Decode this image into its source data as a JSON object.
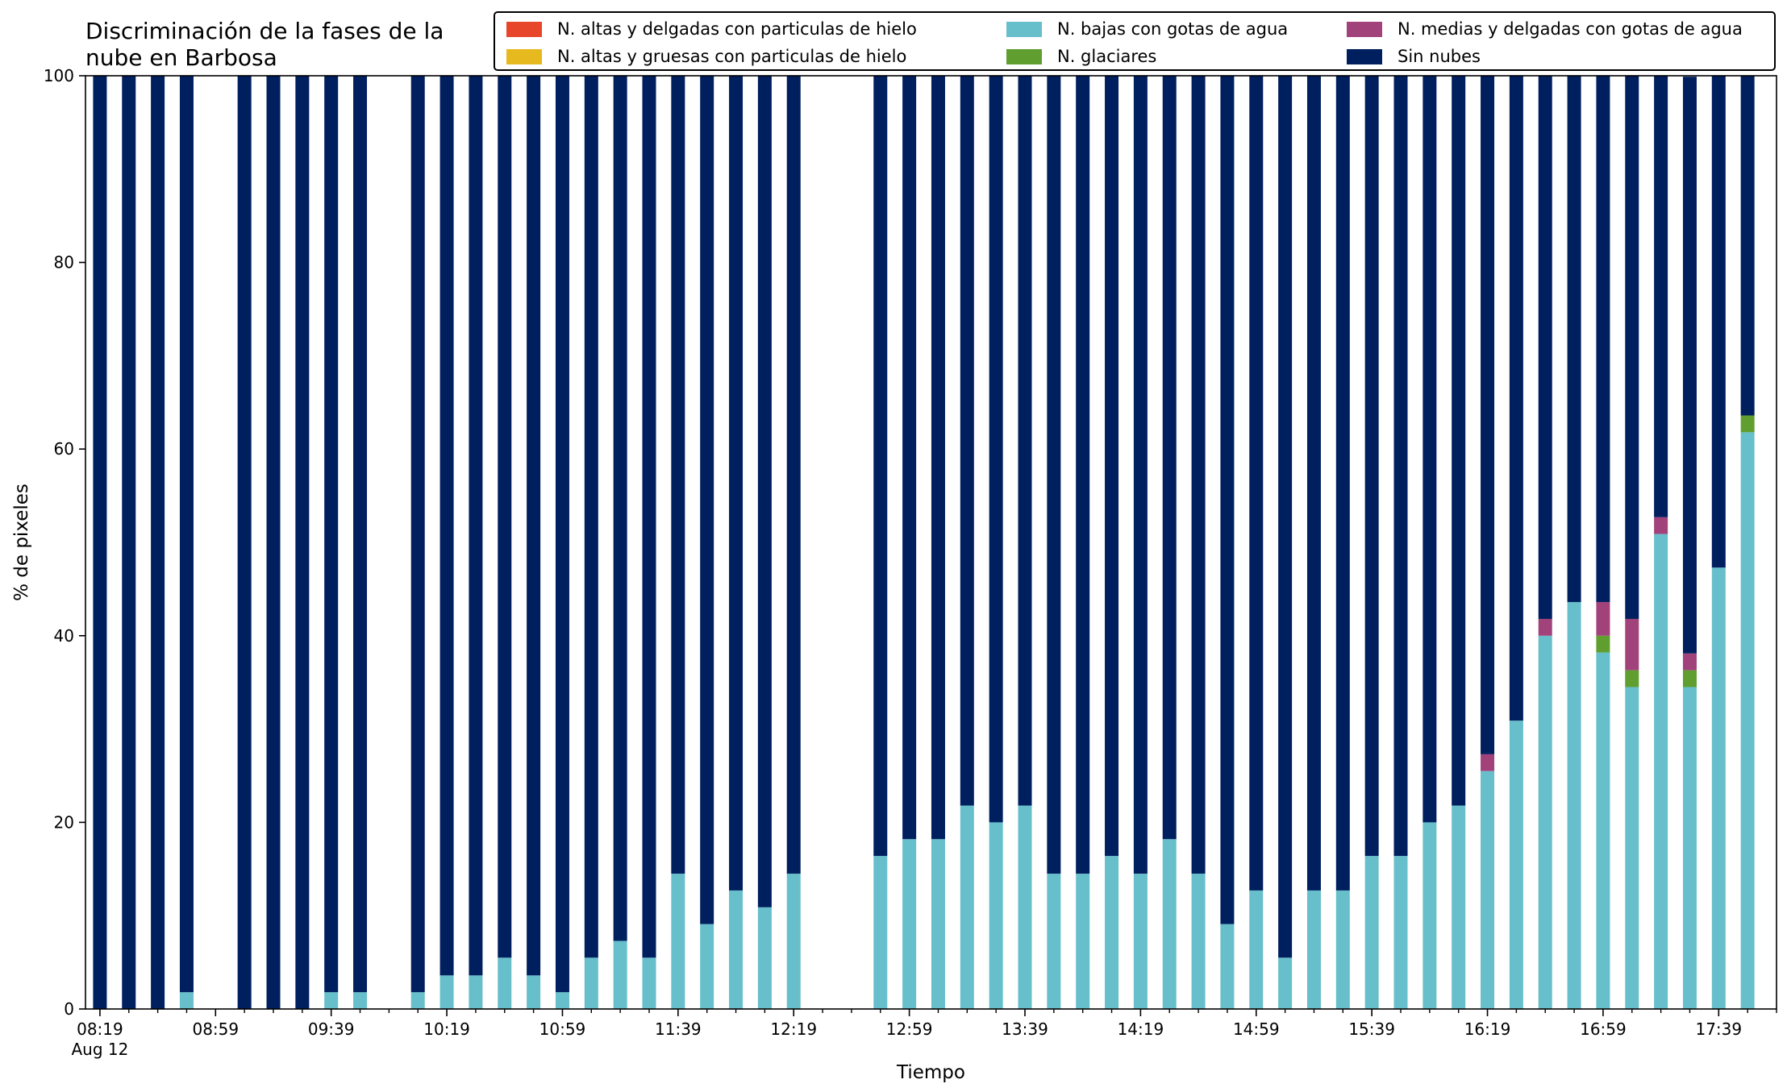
{
  "chart_data": {
    "type": "bar",
    "stacked": true,
    "title": "Discriminación de la fases de la\nnube en Barbosa",
    "xlabel": "Tiempo",
    "ylabel": "% de pixeles",
    "ylim": [
      0,
      100
    ],
    "yticks": [
      0,
      20,
      40,
      60,
      80,
      100
    ],
    "xlim": [
      "08:14",
      "17:59"
    ],
    "x_date_label": "Aug 12",
    "major_xticks": [
      "08:19",
      "08:59",
      "09:39",
      "10:19",
      "10:59",
      "11:39",
      "12:19",
      "12:59",
      "13:39",
      "14:19",
      "14:59",
      "15:39",
      "16:19",
      "16:59",
      "17:39"
    ],
    "minor_xticks": [
      "08:29",
      "08:39",
      "08:49",
      "09:09",
      "09:19",
      "09:29",
      "09:49",
      "09:59",
      "10:09",
      "10:29",
      "10:39",
      "10:49",
      "11:09",
      "11:19",
      "11:29",
      "11:49",
      "11:59",
      "12:09",
      "12:29",
      "12:39",
      "12:49",
      "13:09",
      "13:19",
      "13:29",
      "13:49",
      "13:59",
      "14:09",
      "14:29",
      "14:39",
      "14:49",
      "15:09",
      "15:19",
      "15:29",
      "15:49",
      "15:59",
      "16:09",
      "16:29",
      "16:39",
      "16:49",
      "17:09",
      "17:19",
      "17:29",
      "17:49",
      "17:59"
    ],
    "grid": false,
    "legend_position": "top-right",
    "legend_columns": 3,
    "x": [
      "08:19",
      "08:29",
      "08:39",
      "08:49",
      "09:09",
      "09:19",
      "09:29",
      "09:39",
      "09:49",
      "10:09",
      "10:19",
      "10:29",
      "10:39",
      "10:49",
      "10:59",
      "11:09",
      "11:19",
      "11:29",
      "11:39",
      "11:49",
      "11:59",
      "12:09",
      "12:19",
      "12:49",
      "12:59",
      "13:09",
      "13:19",
      "13:29",
      "13:39",
      "13:49",
      "13:59",
      "14:09",
      "14:19",
      "14:29",
      "14:39",
      "14:49",
      "14:59",
      "15:09",
      "15:19",
      "15:29",
      "15:39",
      "15:49",
      "15:59",
      "16:09",
      "16:19",
      "16:29",
      "16:39",
      "16:49",
      "16:59",
      "17:09",
      "17:19",
      "17:29",
      "17:39",
      "17:49"
    ],
    "series": [
      {
        "name": "N. altas y delgadas con particulas de hielo",
        "color": "#e8462a",
        "values": [
          0,
          0,
          0,
          0,
          0,
          0,
          0,
          0,
          0,
          0,
          0,
          0,
          0,
          0,
          0,
          0,
          0,
          0,
          0,
          0,
          0,
          0,
          0,
          0,
          0,
          0,
          0,
          0,
          0,
          0,
          0,
          0,
          0,
          0,
          0,
          0,
          0,
          0,
          0,
          0,
          0,
          0,
          0,
          0,
          0,
          0,
          0,
          0,
          0,
          0,
          0,
          0,
          0,
          0
        ]
      },
      {
        "name": "N. altas y gruesas con particulas de hielo",
        "color": "#e6b91e",
        "values": [
          0,
          0,
          0,
          0,
          0,
          0,
          0,
          0,
          0,
          0,
          0,
          0,
          0,
          0,
          0,
          0,
          0,
          0,
          0,
          0,
          0,
          0,
          0,
          0,
          0,
          0,
          0,
          0,
          0,
          0,
          0,
          0,
          0,
          0,
          0,
          0,
          0,
          0,
          0,
          0,
          0,
          0,
          0,
          0,
          0,
          0,
          0,
          0,
          0,
          0,
          0,
          0,
          0,
          0
        ]
      },
      {
        "name": "N. bajas con gotas de agua",
        "color": "#67bfcb",
        "values": [
          0,
          0,
          0,
          1.8,
          0,
          0,
          0,
          1.8,
          1.8,
          1.8,
          3.6,
          3.6,
          5.5,
          3.6,
          1.8,
          5.5,
          7.3,
          5.5,
          14.5,
          9.1,
          12.7,
          10.9,
          14.5,
          16.4,
          18.2,
          18.2,
          21.8,
          20.0,
          21.8,
          14.5,
          14.5,
          16.4,
          14.5,
          18.2,
          14.5,
          9.1,
          12.7,
          5.5,
          12.7,
          12.7,
          16.4,
          16.4,
          20.0,
          21.8,
          25.5,
          30.9,
          40.0,
          43.6,
          38.2,
          34.5,
          50.9,
          34.5,
          47.3,
          61.8
        ]
      },
      {
        "name": "N. glaciares",
        "color": "#5f9e2f",
        "values": [
          0,
          0,
          0,
          0,
          0,
          0,
          0,
          0,
          0,
          0,
          0,
          0,
          0,
          0,
          0,
          0,
          0,
          0,
          0,
          0,
          0,
          0,
          0,
          0,
          0,
          0,
          0,
          0,
          0,
          0,
          0,
          0,
          0,
          0,
          0,
          0,
          0,
          0,
          0,
          0,
          0,
          0,
          0,
          0,
          0,
          0,
          0,
          0,
          1.8,
          1.8,
          0,
          1.8,
          0,
          1.8
        ]
      },
      {
        "name": "N. medias y delgadas con gotas de agua",
        "color": "#a2427a",
        "values": [
          0,
          0,
          0,
          0,
          0,
          0,
          0,
          0,
          0,
          0,
          0,
          0,
          0,
          0,
          0,
          0,
          0,
          0,
          0,
          0,
          0,
          0,
          0,
          0,
          0,
          0,
          0,
          0,
          0,
          0,
          0,
          0,
          0,
          0,
          0,
          0,
          0,
          0,
          0,
          0,
          0,
          0,
          0,
          0,
          1.8,
          0,
          1.8,
          0,
          3.6,
          5.5,
          1.8,
          1.8,
          0,
          0
        ]
      },
      {
        "name": "Sin nubes",
        "color": "#001f5f",
        "values": [
          100,
          100,
          100,
          98.2,
          100,
          100,
          100,
          98.2,
          98.2,
          98.2,
          96.4,
          96.4,
          94.5,
          96.4,
          98.2,
          94.5,
          92.7,
          94.5,
          85.5,
          90.9,
          87.3,
          89.1,
          85.5,
          83.6,
          81.8,
          81.8,
          78.2,
          80.0,
          78.2,
          85.5,
          85.5,
          83.6,
          85.5,
          81.8,
          85.5,
          90.9,
          87.3,
          94.5,
          87.3,
          87.3,
          83.6,
          83.6,
          80.0,
          78.2,
          72.7,
          69.1,
          58.2,
          56.4,
          56.4,
          58.2,
          47.3,
          61.8,
          52.7,
          36.4
        ]
      }
    ]
  }
}
